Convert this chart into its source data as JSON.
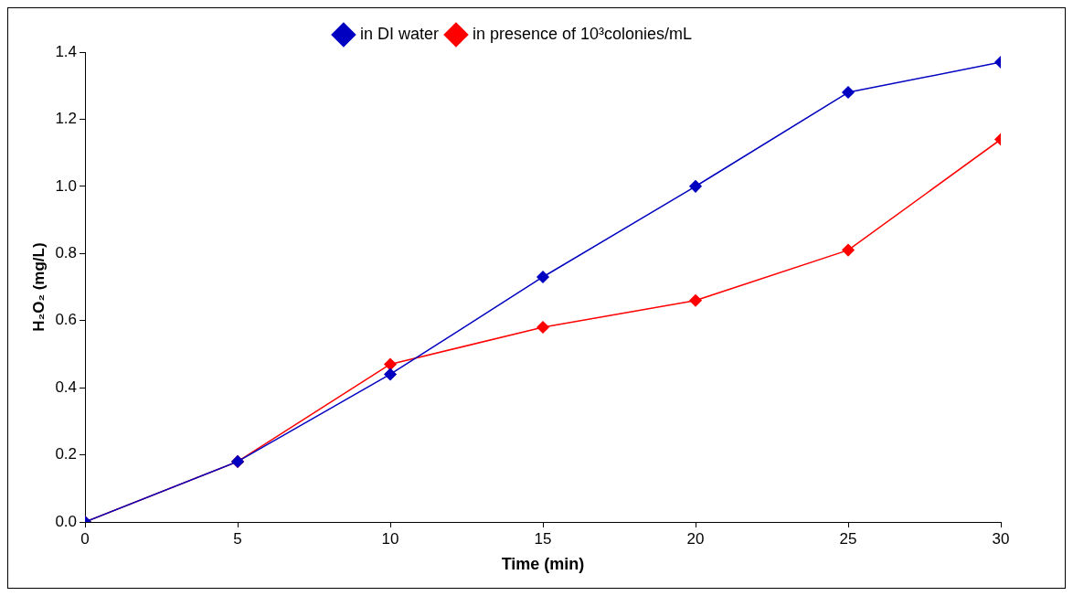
{
  "chart_data": {
    "type": "line",
    "xlabel": "Time (min)",
    "ylabel": "H₂O₂ (mg/L)",
    "x": [
      0,
      5,
      10,
      15,
      20,
      25,
      30
    ],
    "series": [
      {
        "name": "in DI water",
        "color": "#0000c0",
        "values": [
          0,
          0.18,
          0.44,
          0.73,
          1.0,
          1.28,
          1.37
        ]
      },
      {
        "name": "in presence of 10³colonies/mL",
        "color": "#ff0000",
        "values": [
          0,
          0.18,
          0.47,
          0.58,
          0.66,
          0.81,
          1.14
        ]
      }
    ],
    "xlim": [
      0,
      30
    ],
    "xticks": [
      0,
      5,
      10,
      15,
      20,
      25,
      30
    ],
    "ylim": [
      0,
      1.4
    ],
    "yticks": [
      {
        "value": 0,
        "label": "0.0"
      },
      0.2,
      0.4,
      0.6,
      0.8,
      {
        "value": 1,
        "label": "1.0"
      },
      1.2,
      1.4
    ],
    "grid": false,
    "legend": "top",
    "marker": "diamond",
    "line_style": "solid"
  }
}
